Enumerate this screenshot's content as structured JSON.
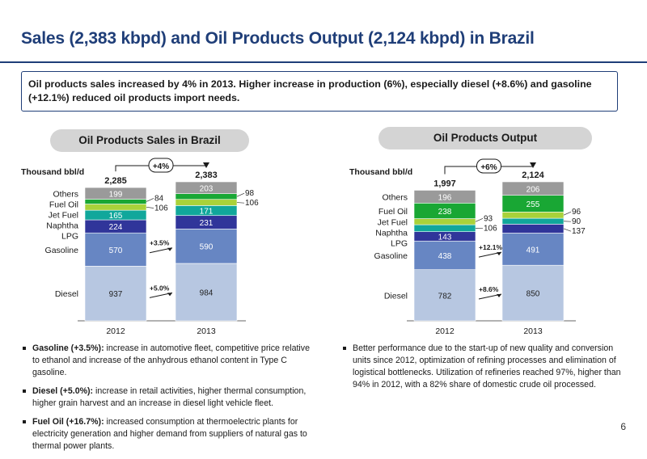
{
  "title": "Sales (2,383 kbpd) and Oil Products Output (2,124 kbpd) in Brazil",
  "summary": "Oil products sales increased by 4% in 2013. Higher increase in production (6%), especially diesel (+8.6%) and gasoline (+12.1%) reduced oil products import needs.",
  "colors": {
    "title_blue": "#1f3e78",
    "Diesel": "#b7c7e1",
    "Gasoline": "#6786c3",
    "LPG": "#30359a",
    "Naphtha": "#11a79b",
    "Jet Fuel": "#a9d23a",
    "Fuel Oil": "#19a734",
    "Others": "#9a9a9a"
  },
  "chart_data": [
    {
      "type": "bar",
      "stacked": true,
      "title": "Oil Products Sales in Brazil",
      "ylabel": "Thousand bbl/d",
      "categories": [
        "2012",
        "2013"
      ],
      "series": [
        {
          "name": "Diesel",
          "values": [
            937,
            984
          ]
        },
        {
          "name": "Gasoline",
          "values": [
            570,
            590
          ]
        },
        {
          "name": "LPG",
          "values": [
            224,
            231
          ]
        },
        {
          "name": "Naphtha",
          "values": [
            165,
            171
          ]
        },
        {
          "name": "Jet Fuel",
          "values": [
            106,
            106
          ]
        },
        {
          "name": "Fuel Oil",
          "values": [
            84,
            98
          ]
        },
        {
          "name": "Others",
          "values": [
            199,
            203
          ]
        }
      ],
      "totals": [
        "2,285",
        "2,383"
      ],
      "growth_label": "+4%",
      "annotations": [
        {
          "series": "Gasoline",
          "text": "+3.5%"
        },
        {
          "series": "Diesel",
          "text": "+5.0%"
        }
      ],
      "ylim": [
        0,
        2400
      ]
    },
    {
      "type": "bar",
      "stacked": true,
      "title": "Oil Products Output",
      "ylabel": "Thousand bbl/d",
      "categories": [
        "2012",
        "2013"
      ],
      "series": [
        {
          "name": "Diesel",
          "values": [
            782,
            850
          ]
        },
        {
          "name": "Gasoline",
          "values": [
            438,
            491
          ]
        },
        {
          "name": "LPG",
          "values": [
            143,
            137
          ]
        },
        {
          "name": "Naphtha",
          "values": [
            106,
            90
          ]
        },
        {
          "name": "Jet Fuel",
          "values": [
            93,
            96
          ]
        },
        {
          "name": "Fuel Oil",
          "values": [
            238,
            255
          ]
        },
        {
          "name": "Others",
          "values": [
            196,
            206
          ]
        }
      ],
      "totals": [
        "1,997",
        "2,124"
      ],
      "growth_label": "+6%",
      "annotations": [
        {
          "series": "Gasoline",
          "text": "+12.1%"
        },
        {
          "series": "Diesel",
          "text": "+8.6%"
        }
      ],
      "ylim": [
        0,
        2400
      ]
    }
  ],
  "left_bullets": [
    {
      "strong": "Gasoline (+3.5%):",
      "text": " increase in automotive fleet, competitive price relative to ethanol and increase of the anhydrous ethanol content in Type C gasoline."
    },
    {
      "strong": "Diesel (+5.0%):",
      "text": " increase in retail activities, higher thermal consumption, higher grain harvest and an increase in diesel light vehicle fleet."
    },
    {
      "strong": "Fuel Oil (+16.7%):",
      "text": " increased consumption at thermoelectric plants for electricity generation and higher demand from suppliers of natural gas to thermal power plants."
    }
  ],
  "right_bullets": [
    {
      "strong": "",
      "text": "Better performance due to the start-up of new quality and conversion units since 2012, optimization of refining processes and elimination of logistical bottlenecks. Utilization of refineries reached 97%, higher than 94% in 2012, with a 82% share of domestic crude oil processed."
    }
  ],
  "page_number": "6"
}
